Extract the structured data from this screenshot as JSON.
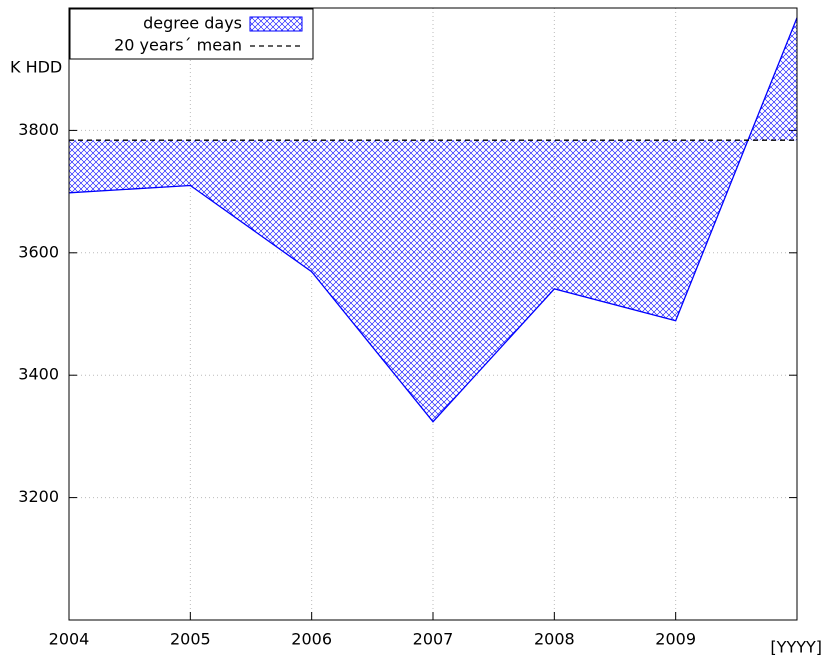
{
  "chart_data": {
    "type": "area",
    "ylabel": "K HDD",
    "xlabel": "[YYYY]",
    "x": [
      2004,
      2005,
      2006,
      2007,
      2008,
      2009,
      2010
    ],
    "series": [
      {
        "name": "degree days",
        "color": "#0000ff",
        "values": [
          3698,
          3710,
          3569,
          3324,
          3541,
          3489,
          3984
        ]
      },
      {
        "name": "20 years´ mean",
        "color": "#000000",
        "values": [
          3784,
          3784,
          3784,
          3784,
          3784,
          3784,
          3784
        ]
      }
    ],
    "xlim": [
      2004,
      2010
    ],
    "xticks": [
      2004,
      2005,
      2006,
      2007,
      2008,
      2009
    ],
    "ylim": [
      3000,
      4000
    ],
    "yticks": [
      3200,
      3400,
      3600,
      3800
    ],
    "grid": true,
    "legend": "top-left"
  }
}
